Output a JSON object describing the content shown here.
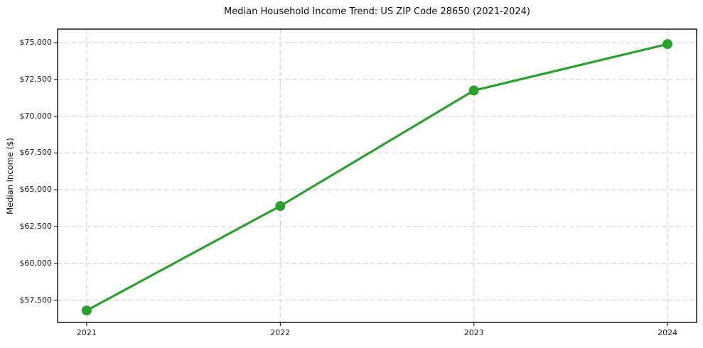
{
  "chart_data": {
    "type": "line",
    "title": "Median Household Income Trend: US ZIP Code 28650 (2021-2024)",
    "xlabel": "",
    "ylabel": "Median Income ($)",
    "x": [
      2021,
      2022,
      2023,
      2024
    ],
    "x_tick_labels": [
      "2021",
      "2022",
      "2023",
      "2024"
    ],
    "values": [
      56800,
      63900,
      71750,
      74900
    ],
    "series_name": "Median Household Income",
    "y_ticks": [
      57500,
      60000,
      62500,
      65000,
      67500,
      70000,
      72500,
      75000
    ],
    "y_tick_labels": [
      "$57,500",
      "$60,000",
      "$62,500",
      "$65,000",
      "$67,500",
      "$70,000",
      "$72,500",
      "$75,000"
    ],
    "xlim": [
      2020.85,
      2024.15
    ],
    "ylim": [
      55990,
      75920
    ],
    "grid": true,
    "grid_style": "dashed",
    "legend": false,
    "line_color": "#2ca02c",
    "marker": "circle",
    "background_color": "#ffffff"
  }
}
